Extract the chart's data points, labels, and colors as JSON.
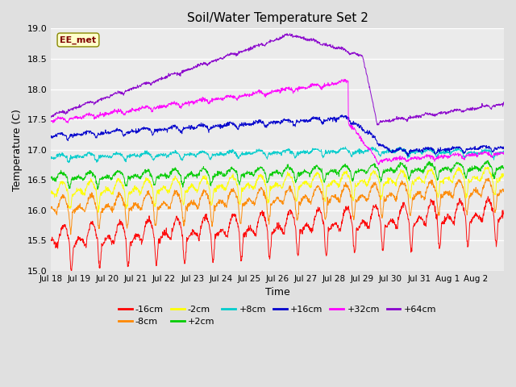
{
  "title": "Soil/Water Temperature Set 2",
  "xlabel": "Time",
  "ylabel": "Temperature (C)",
  "ylim": [
    15.0,
    19.0
  ],
  "yticks": [
    15.0,
    15.5,
    16.0,
    16.5,
    17.0,
    17.5,
    18.0,
    18.5,
    19.0
  ],
  "xtick_labels": [
    "Jul 18",
    "Jul 19",
    "Jul 20",
    "Jul 21",
    "Jul 22",
    "Jul 23",
    "Jul 24",
    "Jul 25",
    "Jul 26",
    "Jul 27",
    "Jul 28",
    "Jul 29",
    "Jul 30",
    "Jul 31",
    "Aug 1",
    "Aug 2"
  ],
  "background_color": "#e0e0e0",
  "plot_bg_color": "#ebebeb",
  "annotation_text": "EE_met",
  "annotation_bg": "#ffffcc",
  "annotation_fg": "#800000",
  "series": [
    {
      "label": "-16cm",
      "color": "#ff0000"
    },
    {
      "label": "-8cm",
      "color": "#ff8800"
    },
    {
      "label": "-2cm",
      "color": "#ffff00"
    },
    {
      "label": "+2cm",
      "color": "#00cc00"
    },
    {
      "label": "+8cm",
      "color": "#00cccc"
    },
    {
      "label": "+16cm",
      "color": "#0000cc"
    },
    {
      "label": "+32cm",
      "color": "#ff00ff"
    },
    {
      "label": "+64cm",
      "color": "#8800cc"
    }
  ]
}
